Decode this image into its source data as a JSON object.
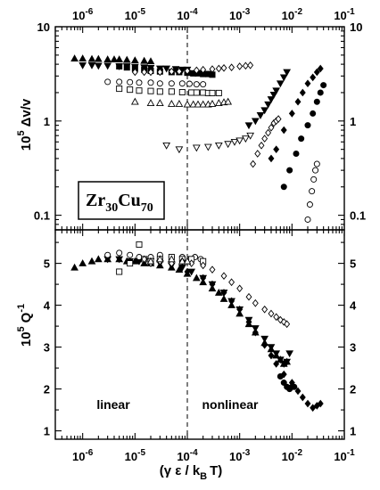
{
  "chart_data": [
    {
      "type": "scatter",
      "panel": "top",
      "xscale": "log",
      "yscale": "log",
      "xlim": [
        3e-07,
        0.1
      ],
      "ylim": [
        0.07,
        10
      ],
      "ylabel": "Δv/v",
      "ylabel_prefix": "10",
      "ylabel_exp": "5",
      "xticks": [
        {
          "v": 1e-06,
          "base": "10",
          "exp": "-6"
        },
        {
          "v": 1e-05,
          "base": "10",
          "exp": "-5"
        },
        {
          "v": 0.0001,
          "base": "10",
          "exp": "-4"
        },
        {
          "v": 0.001,
          "base": "10",
          "exp": "-3"
        },
        {
          "v": 0.01,
          "base": "10",
          "exp": "-2"
        },
        {
          "v": 0.1,
          "base": "10",
          "exp": "-1"
        }
      ],
      "yticks": [
        {
          "v": 10,
          "label": "10"
        },
        {
          "v": 1,
          "label": "1"
        },
        {
          "v": 0.1,
          "label": "0.1"
        }
      ],
      "vline": 0.0001,
      "annotation": {
        "base": "Zr",
        "sub1": "30",
        "mid": "Cu",
        "sub2": "70"
      },
      "series": [
        {
          "marker": "triangle-up-filled",
          "x": [
            7e-07,
            1e-06,
            1.5e-06,
            2e-06,
            3e-06,
            4e-06,
            5e-06,
            7e-06,
            1e-05,
            1.5e-05,
            2e-05
          ],
          "y": [
            4.6,
            4.6,
            4.55,
            4.55,
            4.5,
            4.5,
            4.5,
            4.45,
            4.4,
            4.35,
            4.3
          ]
        },
        {
          "marker": "triangle-down-filled",
          "x": [
            1e-06,
            1.5e-06,
            2e-06,
            3e-06,
            5e-06,
            7e-06,
            1e-05,
            1.5e-05,
            2e-05,
            3e-05,
            4e-05,
            6e-05,
            8e-05,
            0.0001
          ],
          "y": [
            3.9,
            3.9,
            3.85,
            3.85,
            3.8,
            3.8,
            3.75,
            3.7,
            3.65,
            3.6,
            3.6,
            3.55,
            3.5,
            3.5
          ]
        },
        {
          "marker": "square-filled",
          "x": [
            5e-06,
            7e-06,
            1e-05,
            1.5e-05,
            2e-05,
            3e-05,
            5e-05,
            7e-05,
            0.0001,
            0.00013,
            0.00016,
            0.0002,
            0.00025,
            0.0003
          ],
          "y": [
            3.8,
            3.7,
            3.6,
            3.5,
            3.4,
            3.35,
            3.3,
            3.3,
            3.25,
            3.2,
            3.2,
            3.15,
            3.15,
            3.1
          ]
        },
        {
          "marker": "diamond-open",
          "x": [
            1e-05,
            1.5e-05,
            2e-05,
            3e-05,
            5e-05,
            7e-05,
            0.0001,
            0.00015,
            0.0002,
            0.0003,
            0.0004,
            0.0005,
            0.0007,
            0.001,
            0.0013,
            0.0016
          ],
          "y": [
            3.3,
            3.3,
            3.3,
            3.3,
            3.35,
            3.35,
            3.4,
            3.45,
            3.5,
            3.55,
            3.6,
            3.65,
            3.7,
            3.8,
            3.85,
            3.9
          ]
        },
        {
          "marker": "circle-open",
          "x": [
            3e-06,
            5e-06,
            8e-06,
            1.2e-05,
            2e-05,
            3e-05,
            5e-05,
            8e-05,
            0.00011,
            0.00015,
            0.0002
          ],
          "y": [
            2.6,
            2.6,
            2.58,
            2.55,
            2.55,
            2.5,
            2.5,
            2.5,
            2.48,
            2.45,
            2.45
          ]
        },
        {
          "marker": "square-open",
          "x": [
            5e-06,
            8e-06,
            1.2e-05,
            2e-05,
            3e-05,
            5e-05,
            8e-05,
            0.00012,
            0.00015,
            0.0002,
            0.00025,
            0.0003,
            0.0004
          ],
          "y": [
            2.2,
            2.15,
            2.1,
            2.08,
            2.05,
            2.05,
            2.02,
            2.0,
            2.0,
            2.0,
            1.98,
            1.98,
            1.98
          ]
        },
        {
          "marker": "triangle-up-open",
          "x": [
            1e-05,
            2e-05,
            3e-05,
            5e-05,
            7e-05,
            0.0001,
            0.00013,
            0.00016,
            0.0002,
            0.00025,
            0.0003,
            0.0004,
            0.0005,
            0.0006
          ],
          "y": [
            1.6,
            1.55,
            1.55,
            1.52,
            1.52,
            1.5,
            1.5,
            1.5,
            1.5,
            1.5,
            1.52,
            1.55,
            1.58,
            1.6
          ]
        },
        {
          "marker": "triangle-down-open",
          "x": [
            4e-05,
            7e-05,
            0.00015,
            0.00025,
            0.0004,
            0.0006,
            0.0008,
            0.001,
            0.0013,
            0.0016
          ],
          "y": [
            0.55,
            0.5,
            0.52,
            0.53,
            0.55,
            0.57,
            0.6,
            0.62,
            0.65,
            0.7
          ]
        },
        {
          "marker": "triangle-down-filled",
          "x": [
            0.0015,
            0.002,
            0.0025,
            0.003,
            0.0035,
            0.004,
            0.0045,
            0.005,
            0.006,
            0.007,
            0.008
          ],
          "y": [
            0.9,
            1.0,
            1.15,
            1.3,
            1.5,
            1.7,
            1.9,
            2.1,
            2.5,
            2.9,
            3.3
          ]
        },
        {
          "marker": "diamond-filled",
          "x": [
            0.004,
            0.005,
            0.007,
            0.01,
            0.013,
            0.016,
            0.02,
            0.025,
            0.03,
            0.035
          ],
          "y": [
            0.4,
            0.5,
            0.8,
            1.2,
            1.6,
            2.0,
            2.5,
            2.9,
            3.3,
            3.6
          ]
        },
        {
          "marker": "diamond-open",
          "x": [
            0.0018,
            0.0022,
            0.0026,
            0.003,
            0.0035,
            0.004,
            0.0045,
            0.005,
            0.0055
          ],
          "y": [
            0.35,
            0.45,
            0.55,
            0.65,
            0.75,
            0.85,
            0.95,
            1.0,
            1.05
          ]
        },
        {
          "marker": "circle-filled",
          "x": [
            0.007,
            0.009,
            0.012,
            0.015,
            0.02,
            0.025,
            0.03,
            0.035,
            0.04
          ],
          "y": [
            0.2,
            0.3,
            0.45,
            0.65,
            0.9,
            1.2,
            1.6,
            2.0,
            2.4
          ]
        },
        {
          "marker": "circle-open",
          "x": [
            0.02,
            0.022,
            0.024,
            0.026,
            0.028,
            0.03
          ],
          "y": [
            0.09,
            0.13,
            0.18,
            0.24,
            0.3,
            0.35
          ]
        }
      ]
    },
    {
      "type": "scatter",
      "panel": "bottom",
      "xscale": "log",
      "yscale": "linear",
      "xlim": [
        3e-07,
        0.1
      ],
      "ylim": [
        0.8,
        5.8
      ],
      "ylabel": "Q",
      "ylabel_prefix": "10",
      "ylabel_exp": "5",
      "ylabel_sup2": "-1",
      "xlabel_open": "(γ ε / k",
      "xlabel_sub": "B",
      "xlabel_close": "T)",
      "xticks": [
        {
          "v": 1e-06,
          "base": "10",
          "exp": "-6"
        },
        {
          "v": 1e-05,
          "base": "10",
          "exp": "-5"
        },
        {
          "v": 0.0001,
          "base": "10",
          "exp": "-4"
        },
        {
          "v": 0.001,
          "base": "10",
          "exp": "-3"
        },
        {
          "v": 0.01,
          "base": "10",
          "exp": "-2"
        },
        {
          "v": 0.1,
          "base": "10",
          "exp": "-1"
        }
      ],
      "yticks": [
        {
          "v": 5,
          "label": "5"
        },
        {
          "v": 4,
          "label": "4"
        },
        {
          "v": 3,
          "label": "3"
        },
        {
          "v": 2,
          "label": "2"
        },
        {
          "v": 1,
          "label": "1"
        }
      ],
      "vline": 0.0001,
      "text_left": "linear",
      "text_right": "nonlinear",
      "series": [
        {
          "marker": "triangle-up-filled",
          "x": [
            7e-07,
            1e-06,
            1.5e-06,
            2e-06,
            3e-06,
            5e-06,
            7e-06,
            1e-05,
            1.5e-05,
            2e-05,
            3e-05,
            5e-05,
            7e-05,
            0.0001,
            0.00015,
            0.0002,
            0.0003,
            0.0004,
            0.0005,
            0.0007,
            0.001,
            0.0015,
            0.002,
            0.003,
            0.004,
            0.005,
            0.006,
            0.007,
            0.008
          ],
          "y": [
            4.9,
            5.0,
            5.05,
            5.1,
            5.1,
            5.1,
            5.05,
            5.05,
            5.0,
            5.0,
            4.95,
            4.9,
            4.85,
            4.75,
            4.65,
            4.55,
            4.4,
            4.3,
            4.15,
            4.0,
            3.8,
            3.55,
            3.35,
            3.1,
            2.95,
            2.8,
            2.7,
            2.6,
            2.65
          ]
        },
        {
          "marker": "triangle-down-filled",
          "x": [
            3e-06,
            5e-06,
            8e-06,
            1.2e-05,
            2e-05,
            3e-05,
            5e-05,
            8e-05,
            0.00012,
            0.0002,
            0.0003,
            0.0005,
            0.0007,
            0.001,
            0.0015,
            0.002,
            0.003,
            0.004,
            0.005,
            0.006,
            0.007,
            0.008,
            0.009
          ],
          "y": [
            5.1,
            5.1,
            5.05,
            5.05,
            5.05,
            5.0,
            4.95,
            4.9,
            4.8,
            4.65,
            4.5,
            4.3,
            4.1,
            3.9,
            3.65,
            3.45,
            3.2,
            3.0,
            2.85,
            2.7,
            2.6,
            2.65,
            2.85
          ]
        },
        {
          "marker": "diamond-filled",
          "x": [
            0.0001,
            0.0002,
            0.0003,
            0.0005,
            0.0007,
            0.001,
            0.0015,
            0.002,
            0.003,
            0.004,
            0.005,
            0.007,
            0.01,
            0.013,
            0.016,
            0.02,
            0.025,
            0.03,
            0.035
          ],
          "y": [
            4.8,
            4.65,
            4.5,
            4.3,
            4.1,
            3.9,
            3.6,
            3.35,
            3.05,
            2.8,
            2.6,
            2.35,
            2.15,
            1.95,
            1.8,
            1.65,
            1.55,
            1.6,
            1.65
          ]
        },
        {
          "marker": "circle-filled",
          "x": [
            0.006,
            0.007,
            0.008,
            0.009,
            0.01,
            0.011
          ],
          "y": [
            2.3,
            2.15,
            2.05,
            2.0,
            2.05,
            2.05
          ]
        },
        {
          "marker": "circle-open",
          "x": [
            3e-06,
            5e-06,
            8e-06,
            1.2e-05,
            2e-05,
            3e-05,
            5e-05,
            8e-05,
            0.00011,
            0.00014,
            0.00018
          ],
          "y": [
            5.2,
            5.25,
            5.2,
            5.15,
            5.15,
            5.2,
            5.15,
            5.15,
            5.1,
            5.15,
            5.1
          ]
        },
        {
          "marker": "square-open",
          "x": [
            5e-06,
            8e-06,
            1.2e-05,
            1.5e-05,
            2e-05,
            3e-05,
            5e-05,
            8e-05,
            0.00012,
            0.0002
          ],
          "y": [
            4.8,
            5.0,
            5.45,
            5.1,
            5.05,
            5.1,
            5.15,
            5.1,
            5.1,
            5.05
          ]
        },
        {
          "marker": "diamond-open",
          "x": [
            1.5e-05,
            2e-05,
            3e-05,
            5e-05,
            8e-05,
            0.00012,
            0.0002,
            0.0003,
            0.0005,
            0.0007,
            0.001,
            0.0015,
            0.002,
            0.003,
            0.004,
            0.005,
            0.006,
            0.007,
            0.008
          ],
          "y": [
            5.1,
            5.0,
            5.05,
            5.0,
            5.05,
            5.0,
            4.95,
            4.85,
            4.7,
            4.55,
            4.4,
            4.2,
            4.05,
            3.9,
            3.8,
            3.72,
            3.65,
            3.6,
            3.55
          ]
        },
        {
          "marker": "triangle-up-open",
          "x": [
            2e-05,
            3e-05,
            5e-05,
            8e-05,
            0.0001
          ],
          "y": [
            5.05,
            5.1,
            5.1,
            5.05,
            5.05
          ]
        }
      ]
    }
  ]
}
